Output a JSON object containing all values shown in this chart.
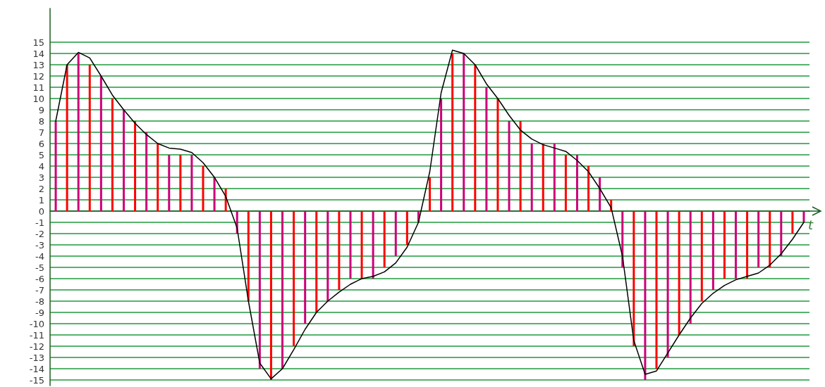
{
  "chart_data": {
    "type": "bar",
    "xlabel": "t",
    "categories": [
      null,
      null,
      null,
      null,
      null,
      null,
      null,
      null,
      null,
      null,
      null,
      null,
      null,
      null,
      null,
      null,
      null,
      null,
      null,
      null,
      null,
      null,
      null,
      null,
      null,
      null,
      null,
      null,
      null,
      null,
      null,
      null,
      null,
      null,
      null,
      null,
      null,
      null,
      null,
      null,
      null,
      null,
      null,
      null,
      null,
      null,
      null,
      null,
      null,
      null,
      null,
      null,
      null,
      null,
      null,
      null,
      null,
      null,
      null,
      null,
      null,
      null,
      null,
      null,
      null,
      null,
      null
    ],
    "ylim": [
      -15.5,
      18
    ],
    "yticks": [
      -15,
      -14,
      -13,
      -12,
      -11,
      -10,
      -9,
      -8,
      -7,
      -6,
      -5,
      -4,
      -3,
      -2,
      -1,
      0,
      1,
      2,
      3,
      4,
      5,
      6,
      7,
      8,
      9,
      10,
      11,
      12,
      13,
      14,
      15
    ],
    "grid": "y",
    "tick_labels": "y",
    "series": [
      {
        "values": [
          8,
          13,
          14,
          13,
          12,
          10,
          9,
          8,
          7,
          6,
          5,
          5,
          5,
          4,
          3,
          2,
          -2,
          -8,
          -14,
          -15,
          -14,
          -12,
          -10,
          -9,
          -8,
          -7,
          -6,
          -6,
          -6,
          -5,
          -4,
          -3,
          -1,
          3,
          10,
          14,
          14,
          13,
          11,
          10,
          8,
          8,
          6,
          6,
          6,
          5,
          5,
          4,
          3,
          1,
          -5,
          -12,
          -15,
          -14,
          -13,
          -11,
          -10,
          -8,
          -7,
          -6,
          -6,
          -6,
          -5,
          -5,
          -4,
          -2,
          -1
        ],
        "colors": [
          "#cc0077",
          "#ff0000",
          "#cc0077",
          "#ff0000",
          "#cc0077",
          "#ff0000",
          "#cc0077",
          "#ff0000",
          "#cc0077",
          "#ff0000",
          "#cc0077",
          "#ff0000",
          "#cc0077",
          "#ff0000",
          "#cc0077",
          "#ff0000",
          "#cc0077",
          "#ff0000",
          "#cc0077",
          "#ff0000",
          "#cc0077",
          "#ff0000",
          "#cc0077",
          "#ff0000",
          "#cc0077",
          "#ff0000",
          "#cc0077",
          "#ff0000",
          "#cc0077",
          "#ff0000",
          "#cc0077",
          "#ff0000",
          "#cc0077",
          "#ff0000",
          "#cc0077",
          "#ff0000",
          "#cc0077",
          "#ff0000",
          "#cc0077",
          "#ff0000",
          "#cc0077",
          "#ff0000",
          "#cc0077",
          "#ff0000",
          "#cc0077",
          "#ff0000",
          "#cc0077",
          "#ff0000",
          "#cc0077",
          "#ff0000",
          "#cc0077",
          "#ff0000",
          "#cc0077",
          "#ff0000",
          "#cc0077",
          "#ff0000",
          "#cc0077",
          "#ff0000",
          "#cc0077",
          "#ff0000",
          "#cc0077",
          "#ff0000",
          "#cc0077",
          "#ff0000",
          "#cc0077",
          "#ff0000",
          "#cc0077"
        ]
      },
      {
        "type": "line",
        "color": "#000000",
        "marker": "none",
        "line_style": "solid",
        "values": [
          8,
          13,
          14.1,
          13.6,
          12,
          10.3,
          9,
          7.8,
          6.8,
          6,
          5.6,
          5.5,
          5.2,
          4.3,
          3,
          1.3,
          -1.5,
          -8,
          -13.5,
          -14.9,
          -14,
          -12.3,
          -10.5,
          -9,
          -8,
          -7.2,
          -6.5,
          -6,
          -5.8,
          -5.4,
          -4.6,
          -3.2,
          -1,
          3.5,
          10.5,
          14.3,
          14,
          13,
          11.3,
          10,
          8.5,
          7.2,
          6.4,
          5.9,
          5.6,
          5.3,
          4.5,
          3.5,
          2,
          0.3,
          -4,
          -11.5,
          -14.5,
          -14.2,
          -12.6,
          -11,
          -9.5,
          -8.2,
          -7.3,
          -6.6,
          -6.1,
          -5.8,
          -5.5,
          -4.8,
          -3.8,
          -2.5,
          -1
        ]
      }
    ]
  }
}
